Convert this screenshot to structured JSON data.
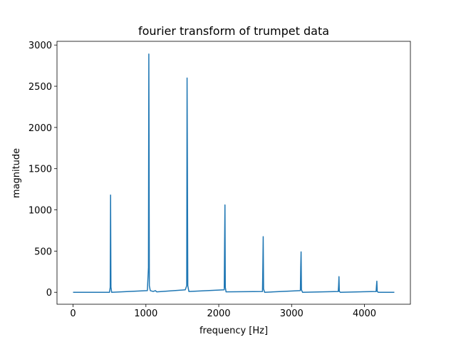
{
  "chart_data": {
    "type": "line",
    "title": "fourier transform of trumpet data",
    "xlabel": "frequency [Hz]",
    "ylabel": "magnitude",
    "color": "#1f77b4",
    "x": [
      0,
      500,
      510,
      515,
      520,
      530,
      1020,
      1035,
      1040,
      1043,
      1047,
      1060,
      1100,
      1130,
      1150,
      1540,
      1560,
      1565,
      1570,
      1575,
      1590,
      2075,
      2080,
      2085,
      2090,
      2100,
      2600,
      2605,
      2610,
      2615,
      2630,
      3120,
      3125,
      3130,
      3135,
      3150,
      3640,
      3645,
      3650,
      3655,
      3670,
      4160,
      4165,
      4170,
      4175,
      4190,
      4410
    ],
    "values": [
      0,
      0,
      60,
      1180,
      60,
      0,
      20,
      300,
      2890,
      1930,
      80,
      20,
      10,
      20,
      5,
      30,
      80,
      2600,
      1480,
      80,
      10,
      30,
      580,
      1060,
      60,
      5,
      10,
      300,
      675,
      40,
      0,
      20,
      300,
      490,
      30,
      0,
      10,
      80,
      190,
      10,
      0,
      10,
      80,
      135,
      10,
      0,
      0
    ],
    "xlim": [
      -220.5,
      4630.5
    ],
    "ylim": [
      -145,
      3045
    ],
    "xticks": [
      0,
      1000,
      2000,
      3000,
      4000
    ],
    "yticks": [
      0,
      500,
      1000,
      1500,
      2000,
      2500,
      3000
    ]
  }
}
